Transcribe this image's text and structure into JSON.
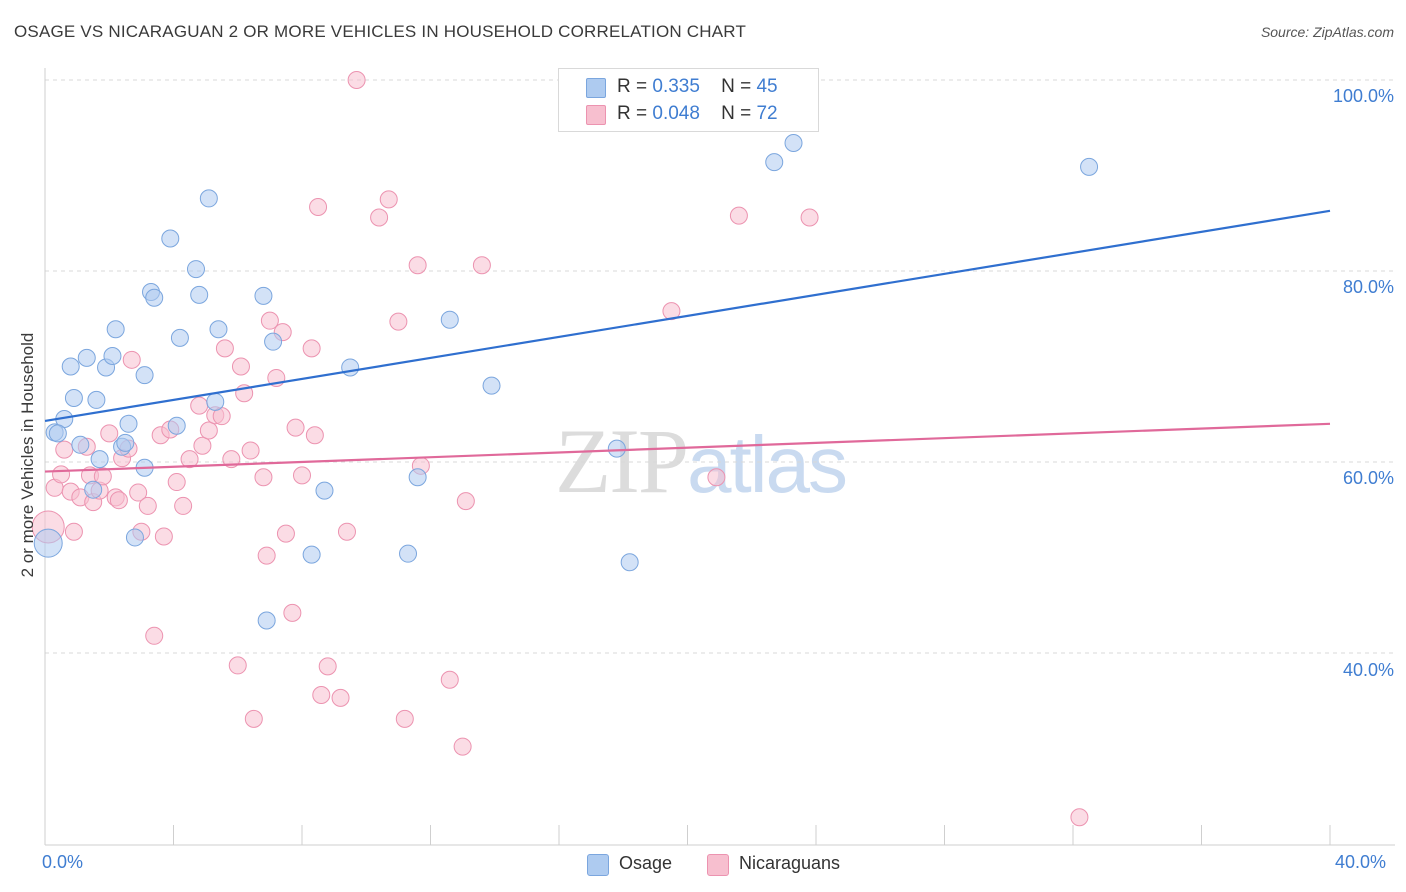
{
  "title": "OSAGE VS NICARAGUAN 2 OR MORE VEHICLES IN HOUSEHOLD CORRELATION CHART",
  "source": "Source: ZipAtlas.com",
  "watermark": {
    "zip": "ZIP",
    "atlas": "atlas"
  },
  "stats": {
    "osage": {
      "r_label": "R =",
      "r_value": "0.335",
      "n_label": "N =",
      "n_value": "45"
    },
    "nicaraguans": {
      "r_label": "R =",
      "r_value": "0.048",
      "n_label": "N =",
      "n_value": "72"
    }
  },
  "legend": {
    "osage": "Osage",
    "nicaraguans": "Nicaraguans"
  },
  "colors": {
    "osage_fill": "#aecbf0",
    "osage_stroke": "#7ba6de",
    "osage_line": "#2f6fcf",
    "nic_fill": "#f7bfcf",
    "nic_stroke": "#ec93b0",
    "nic_line": "#e0699a",
    "axis_text": "#3f7dd1",
    "grid": "#d8d8d8"
  },
  "chart_data": {
    "type": "scatter",
    "title": "OSAGE VS NICARAGUAN 2 OR MORE VEHICLES IN HOUSEHOLD CORRELATION CHART",
    "xlabel": "",
    "ylabel": "2 or more Vehicles in Household",
    "x_tick_labels": [
      "0.0%",
      "40.0%"
    ],
    "y_tick_labels": [
      "100.0%",
      "80.0%",
      "60.0%",
      "40.0%"
    ],
    "xlim": [
      0,
      40
    ],
    "ylim": [
      22,
      102
    ],
    "y_ticks": [
      100,
      80,
      60,
      40
    ],
    "series": [
      {
        "name": "Osage",
        "r": 0.335,
        "n": 45,
        "trend": {
          "x": [
            0,
            40
          ],
          "y": [
            64.3,
            86.3
          ]
        },
        "points": [
          {
            "x": 0.1,
            "y": 51.5,
            "big": true
          },
          {
            "x": 0.3,
            "y": 63.1
          },
          {
            "x": 0.6,
            "y": 64.5
          },
          {
            "x": 0.8,
            "y": 70.0
          },
          {
            "x": 0.9,
            "y": 66.7
          },
          {
            "x": 1.1,
            "y": 61.8
          },
          {
            "x": 1.3,
            "y": 70.9
          },
          {
            "x": 1.5,
            "y": 57.1
          },
          {
            "x": 1.6,
            "y": 66.5
          },
          {
            "x": 1.7,
            "y": 60.3
          },
          {
            "x": 1.9,
            "y": 69.9
          },
          {
            "x": 2.1,
            "y": 71.1
          },
          {
            "x": 2.2,
            "y": 73.9
          },
          {
            "x": 2.4,
            "y": 61.6
          },
          {
            "x": 2.6,
            "y": 64.0
          },
          {
            "x": 2.8,
            "y": 52.1
          },
          {
            "x": 3.1,
            "y": 69.1
          },
          {
            "x": 3.3,
            "y": 77.8
          },
          {
            "x": 3.4,
            "y": 77.2
          },
          {
            "x": 3.9,
            "y": 83.4
          },
          {
            "x": 4.2,
            "y": 73.0
          },
          {
            "x": 4.7,
            "y": 80.2
          },
          {
            "x": 4.8,
            "y": 77.5
          },
          {
            "x": 5.1,
            "y": 87.6
          },
          {
            "x": 5.3,
            "y": 66.3
          },
          {
            "x": 5.4,
            "y": 73.9
          },
          {
            "x": 6.8,
            "y": 77.4
          },
          {
            "x": 7.1,
            "y": 72.6
          },
          {
            "x": 8.3,
            "y": 50.3
          },
          {
            "x": 8.7,
            "y": 57.0
          },
          {
            "x": 9.5,
            "y": 69.9
          },
          {
            "x": 11.3,
            "y": 50.4
          },
          {
            "x": 11.6,
            "y": 58.4
          },
          {
            "x": 12.6,
            "y": 74.9
          },
          {
            "x": 13.9,
            "y": 68.0
          },
          {
            "x": 17.8,
            "y": 61.4
          },
          {
            "x": 18.2,
            "y": 49.5
          },
          {
            "x": 22.7,
            "y": 91.4
          },
          {
            "x": 23.3,
            "y": 93.4
          },
          {
            "x": 32.5,
            "y": 90.9
          },
          {
            "x": 6.9,
            "y": 43.4
          },
          {
            "x": 4.1,
            "y": 63.8
          },
          {
            "x": 2.5,
            "y": 62.0
          },
          {
            "x": 3.1,
            "y": 59.4
          },
          {
            "x": 0.4,
            "y": 63.0
          }
        ]
      },
      {
        "name": "Nicaraguans",
        "r": 0.048,
        "n": 72,
        "trend": {
          "x": [
            0,
            40
          ],
          "y": [
            59.0,
            64.0
          ]
        },
        "points": [
          {
            "x": 0.1,
            "y": 53.2,
            "big": true
          },
          {
            "x": 0.3,
            "y": 57.3
          },
          {
            "x": 0.5,
            "y": 58.7
          },
          {
            "x": 0.6,
            "y": 61.3
          },
          {
            "x": 0.8,
            "y": 56.9
          },
          {
            "x": 0.9,
            "y": 52.7
          },
          {
            "x": 1.1,
            "y": 56.3
          },
          {
            "x": 1.3,
            "y": 61.6
          },
          {
            "x": 1.4,
            "y": 58.6
          },
          {
            "x": 1.5,
            "y": 55.8
          },
          {
            "x": 1.7,
            "y": 57.0
          },
          {
            "x": 1.8,
            "y": 58.5
          },
          {
            "x": 2.0,
            "y": 63.0
          },
          {
            "x": 2.2,
            "y": 56.3
          },
          {
            "x": 2.3,
            "y": 56.0
          },
          {
            "x": 2.4,
            "y": 60.4
          },
          {
            "x": 2.6,
            "y": 61.4
          },
          {
            "x": 2.7,
            "y": 70.7
          },
          {
            "x": 2.9,
            "y": 56.8
          },
          {
            "x": 3.0,
            "y": 52.7
          },
          {
            "x": 3.2,
            "y": 55.4
          },
          {
            "x": 3.4,
            "y": 41.8
          },
          {
            "x": 3.6,
            "y": 62.8
          },
          {
            "x": 3.7,
            "y": 52.2
          },
          {
            "x": 3.9,
            "y": 63.4
          },
          {
            "x": 4.1,
            "y": 57.9
          },
          {
            "x": 4.3,
            "y": 55.4
          },
          {
            "x": 4.5,
            "y": 60.3
          },
          {
            "x": 4.8,
            "y": 65.9
          },
          {
            "x": 4.9,
            "y": 61.7
          },
          {
            "x": 5.1,
            "y": 63.3
          },
          {
            "x": 5.3,
            "y": 64.9
          },
          {
            "x": 5.5,
            "y": 64.8
          },
          {
            "x": 5.6,
            "y": 71.9
          },
          {
            "x": 5.8,
            "y": 60.3
          },
          {
            "x": 6.0,
            "y": 38.7
          },
          {
            "x": 6.1,
            "y": 70.0
          },
          {
            "x": 6.2,
            "y": 67.2
          },
          {
            "x": 6.4,
            "y": 61.2
          },
          {
            "x": 6.5,
            "y": 33.1
          },
          {
            "x": 6.8,
            "y": 58.4
          },
          {
            "x": 6.9,
            "y": 50.2
          },
          {
            "x": 7.0,
            "y": 74.8
          },
          {
            "x": 7.2,
            "y": 68.8
          },
          {
            "x": 7.4,
            "y": 73.6
          },
          {
            "x": 7.5,
            "y": 52.5
          },
          {
            "x": 7.7,
            "y": 44.2
          },
          {
            "x": 7.8,
            "y": 63.6
          },
          {
            "x": 8.0,
            "y": 58.6
          },
          {
            "x": 8.3,
            "y": 71.9
          },
          {
            "x": 8.4,
            "y": 62.8
          },
          {
            "x": 8.5,
            "y": 86.7
          },
          {
            "x": 8.6,
            "y": 35.6
          },
          {
            "x": 8.8,
            "y": 38.6
          },
          {
            "x": 9.2,
            "y": 35.3
          },
          {
            "x": 9.4,
            "y": 52.7
          },
          {
            "x": 9.7,
            "y": 100.0
          },
          {
            "x": 10.4,
            "y": 85.6
          },
          {
            "x": 10.7,
            "y": 87.5
          },
          {
            "x": 11.0,
            "y": 74.7
          },
          {
            "x": 11.2,
            "y": 33.1
          },
          {
            "x": 11.6,
            "y": 80.6
          },
          {
            "x": 11.7,
            "y": 59.6
          },
          {
            "x": 12.6,
            "y": 37.2
          },
          {
            "x": 13.0,
            "y": 30.2
          },
          {
            "x": 13.1,
            "y": 55.9
          },
          {
            "x": 13.6,
            "y": 80.6
          },
          {
            "x": 19.5,
            "y": 75.8
          },
          {
            "x": 20.9,
            "y": 58.4
          },
          {
            "x": 21.6,
            "y": 85.8
          },
          {
            "x": 23.8,
            "y": 85.6
          },
          {
            "x": 32.2,
            "y": 22.8
          }
        ]
      }
    ]
  }
}
